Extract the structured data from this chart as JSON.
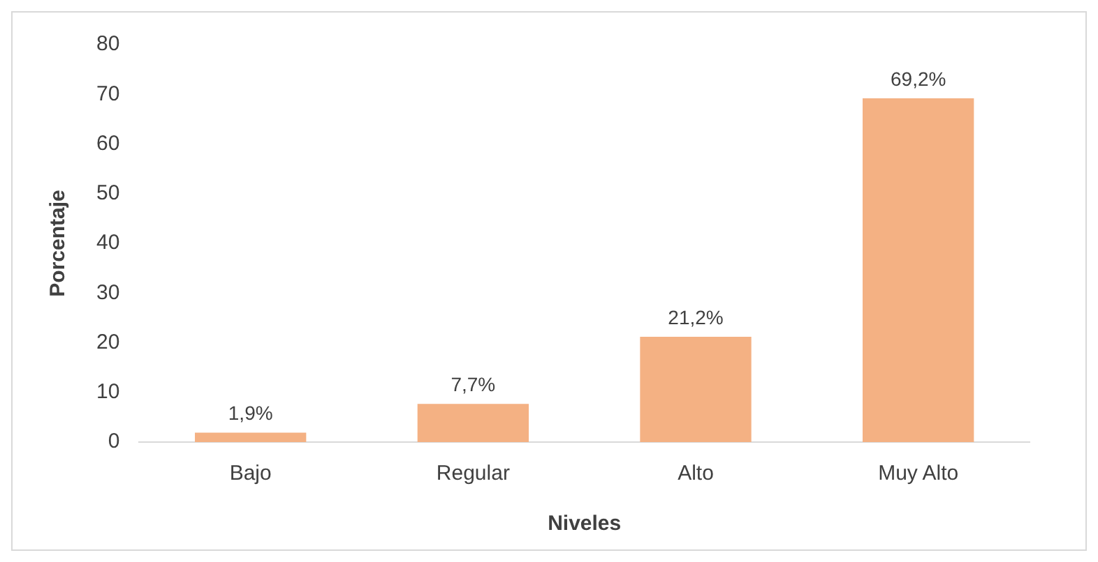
{
  "chart_data": {
    "type": "bar",
    "xlabel": "Niveles",
    "ylabel": "Porcentaje",
    "categories": [
      "Bajo",
      "Regular",
      "Alto",
      "Muy Alto"
    ],
    "values": [
      1.9,
      7.7,
      21.2,
      69.2
    ],
    "value_labels": [
      "1,9%",
      "7,7%",
      "21,2%",
      "69,2%"
    ],
    "color": "#f4b183",
    "ylim": [
      0,
      80
    ],
    "yticks": [
      0,
      10,
      20,
      30,
      40,
      50,
      60,
      70,
      80
    ],
    "grid": false,
    "legend": false
  }
}
